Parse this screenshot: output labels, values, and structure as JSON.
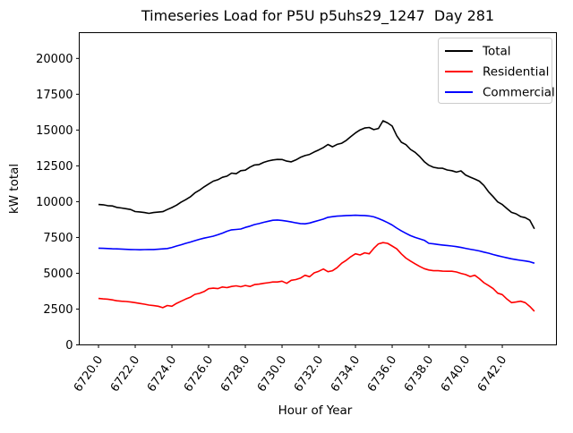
{
  "figure": {
    "background": "#ffffff",
    "frame_color": "#000000"
  },
  "chart_data": {
    "type": "line",
    "title": "Timeseries Load for P5U p5uhs29_1247  Day 281",
    "xlabel": "Hour of Year",
    "ylabel": "kW total",
    "xlim": [
      6718.95,
      6744.95
    ],
    "ylim": [
      0,
      21800
    ],
    "grid": false,
    "xticks": [
      6720,
      6722,
      6724,
      6726,
      6728,
      6730,
      6732,
      6734,
      6736,
      6738,
      6740,
      6742
    ],
    "xtick_labels": [
      "6720.0",
      "6722.0",
      "6724.0",
      "6726.0",
      "6728.0",
      "6730.0",
      "6732.0",
      "6734.0",
      "6736.0",
      "6738.0",
      "6740.0",
      "6742.0"
    ],
    "yticks": [
      0,
      2500,
      5000,
      7500,
      10000,
      12500,
      15000,
      17500,
      20000
    ],
    "ytick_labels": [
      "0",
      "2500",
      "5000",
      "7500",
      "10000",
      "12500",
      "15000",
      "17500",
      "20000"
    ],
    "legend": {
      "position": "upper right",
      "entries": [
        {
          "label": "Total",
          "color": "#000000"
        },
        {
          "label": "Residential",
          "color": "#ff0000"
        },
        {
          "label": "Commercial",
          "color": "#0000ff"
        }
      ]
    },
    "x": [
      6720.0,
      6720.25,
      6720.5,
      6720.75,
      6721.0,
      6721.25,
      6721.5,
      6721.75,
      6722.0,
      6722.25,
      6722.5,
      6722.75,
      6723.0,
      6723.25,
      6723.5,
      6723.75,
      6724.0,
      6724.25,
      6724.5,
      6724.75,
      6725.0,
      6725.25,
      6725.5,
      6725.75,
      6726.0,
      6726.25,
      6726.5,
      6726.75,
      6727.0,
      6727.25,
      6727.5,
      6727.75,
      6728.0,
      6728.25,
      6728.5,
      6728.75,
      6729.0,
      6729.25,
      6729.5,
      6729.75,
      6730.0,
      6730.25,
      6730.5,
      6730.75,
      6731.0,
      6731.25,
      6731.5,
      6731.75,
      6732.0,
      6732.25,
      6732.5,
      6732.75,
      6733.0,
      6733.25,
      6733.5,
      6733.75,
      6734.0,
      6734.25,
      6734.5,
      6734.75,
      6735.0,
      6735.25,
      6735.5,
      6735.75,
      6736.0,
      6736.25,
      6736.5,
      6736.75,
      6737.0,
      6737.25,
      6737.5,
      6737.75,
      6738.0,
      6738.25,
      6738.5,
      6738.75,
      6739.0,
      6739.25,
      6739.5,
      6739.75,
      6740.0,
      6740.25,
      6740.5,
      6740.75,
      6741.0,
      6741.25,
      6741.5,
      6741.75,
      6742.0,
      6742.25,
      6742.5,
      6742.75,
      6743.0,
      6743.25,
      6743.5,
      6743.75
    ],
    "series": [
      {
        "name": "Total",
        "color": "#000000",
        "values": [
          9800,
          9780,
          9720,
          9700,
          9600,
          9560,
          9510,
          9450,
          9310,
          9280,
          9240,
          9180,
          9240,
          9270,
          9300,
          9450,
          9590,
          9760,
          9970,
          10140,
          10330,
          10610,
          10800,
          11030,
          11230,
          11430,
          11530,
          11700,
          11780,
          11990,
          11950,
          12160,
          12200,
          12410,
          12560,
          12590,
          12740,
          12840,
          12910,
          12950,
          12940,
          12830,
          12780,
          12910,
          13090,
          13220,
          13300,
          13470,
          13610,
          13780,
          13990,
          13830,
          14000,
          14080,
          14280,
          14550,
          14800,
          15010,
          15140,
          15180,
          15030,
          15110,
          15650,
          15500,
          15280,
          14600,
          14150,
          13980,
          13650,
          13440,
          13150,
          12790,
          12540,
          12400,
          12340,
          12330,
          12210,
          12160,
          12060,
          12150,
          11860,
          11710,
          11580,
          11430,
          11130,
          10690,
          10350,
          9980,
          9800,
          9520,
          9250,
          9150,
          8960,
          8880,
          8700,
          8100
        ]
      },
      {
        "name": "Residential",
        "color": "#ff0000",
        "values": [
          3240,
          3210,
          3190,
          3140,
          3080,
          3050,
          3030,
          2990,
          2950,
          2890,
          2840,
          2780,
          2740,
          2700,
          2600,
          2750,
          2700,
          2900,
          3050,
          3200,
          3320,
          3530,
          3600,
          3720,
          3920,
          3960,
          3930,
          4040,
          4000,
          4080,
          4120,
          4060,
          4150,
          4080,
          4210,
          4240,
          4300,
          4340,
          4390,
          4390,
          4450,
          4300,
          4510,
          4560,
          4660,
          4860,
          4760,
          5030,
          5140,
          5300,
          5110,
          5180,
          5390,
          5700,
          5910,
          6160,
          6360,
          6280,
          6430,
          6360,
          6740,
          7050,
          7140,
          7090,
          6900,
          6700,
          6350,
          6060,
          5850,
          5660,
          5480,
          5320,
          5230,
          5180,
          5180,
          5150,
          5140,
          5140,
          5090,
          4990,
          4910,
          4770,
          4860,
          4620,
          4340,
          4140,
          3930,
          3610,
          3510,
          3200,
          2950,
          2990,
          3050,
          2950,
          2680,
          2350
        ]
      },
      {
        "name": "Commercial",
        "color": "#0000ff",
        "values": [
          6750,
          6740,
          6730,
          6710,
          6700,
          6690,
          6670,
          6660,
          6650,
          6640,
          6650,
          6660,
          6660,
          6680,
          6700,
          6730,
          6800,
          6900,
          6990,
          7090,
          7180,
          7280,
          7370,
          7450,
          7520,
          7590,
          7690,
          7800,
          7930,
          8030,
          8060,
          8090,
          8200,
          8290,
          8400,
          8470,
          8560,
          8630,
          8700,
          8720,
          8690,
          8640,
          8580,
          8520,
          8470,
          8450,
          8510,
          8600,
          8690,
          8780,
          8910,
          8950,
          8990,
          9010,
          9030,
          9040,
          9050,
          9040,
          9030,
          9000,
          8940,
          8820,
          8690,
          8540,
          8370,
          8150,
          7960,
          7790,
          7630,
          7500,
          7400,
          7300,
          7090,
          7050,
          7010,
          6970,
          6940,
          6900,
          6860,
          6800,
          6740,
          6680,
          6620,
          6560,
          6480,
          6400,
          6310,
          6230,
          6150,
          6080,
          6010,
          5950,
          5900,
          5860,
          5800,
          5700
        ]
      }
    ]
  }
}
